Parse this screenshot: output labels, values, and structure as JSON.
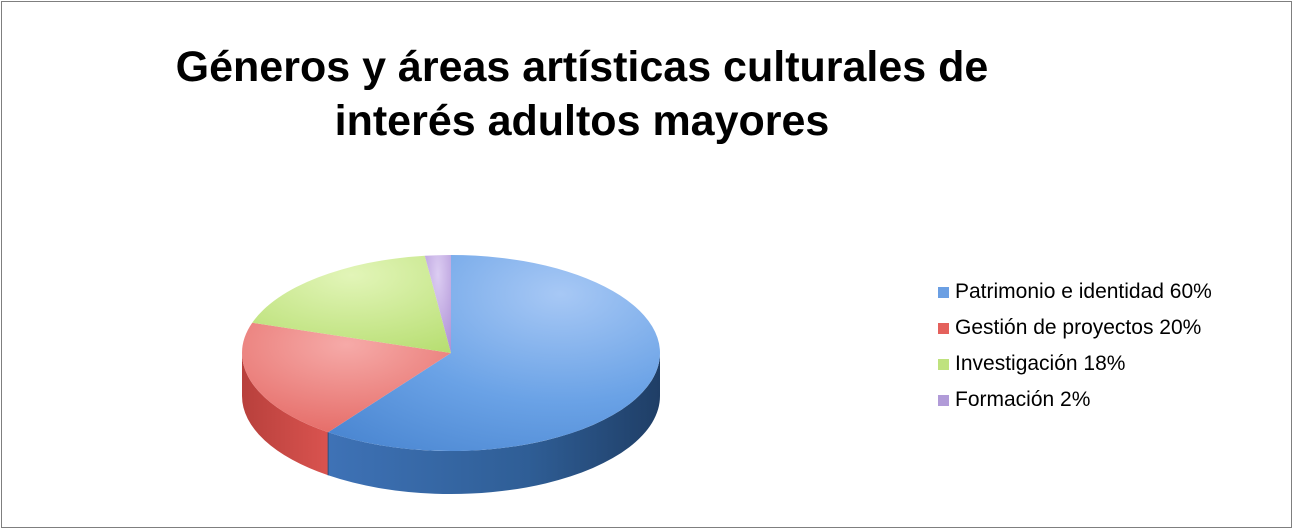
{
  "chart_data": {
    "type": "pie",
    "title": "Géneros y áreas artísticas culturales de interés adultos mayores",
    "title_lines": [
      "Géneros y áreas artísticas culturales de",
      "interés adultos mayores"
    ],
    "style": "3d",
    "legend_position": "right",
    "slices": [
      {
        "label": "Patrimonio e identidad 60%",
        "value": 60,
        "color": "#4f81bd"
      },
      {
        "label": "Gestión de proyectos 20%",
        "value": 20,
        "color": "#c0504d"
      },
      {
        "label": "Investigación 18%",
        "value": 18,
        "color": "#9bbb59"
      },
      {
        "label": "Formación 2%",
        "value": 2,
        "color": "#8064a2"
      }
    ]
  }
}
